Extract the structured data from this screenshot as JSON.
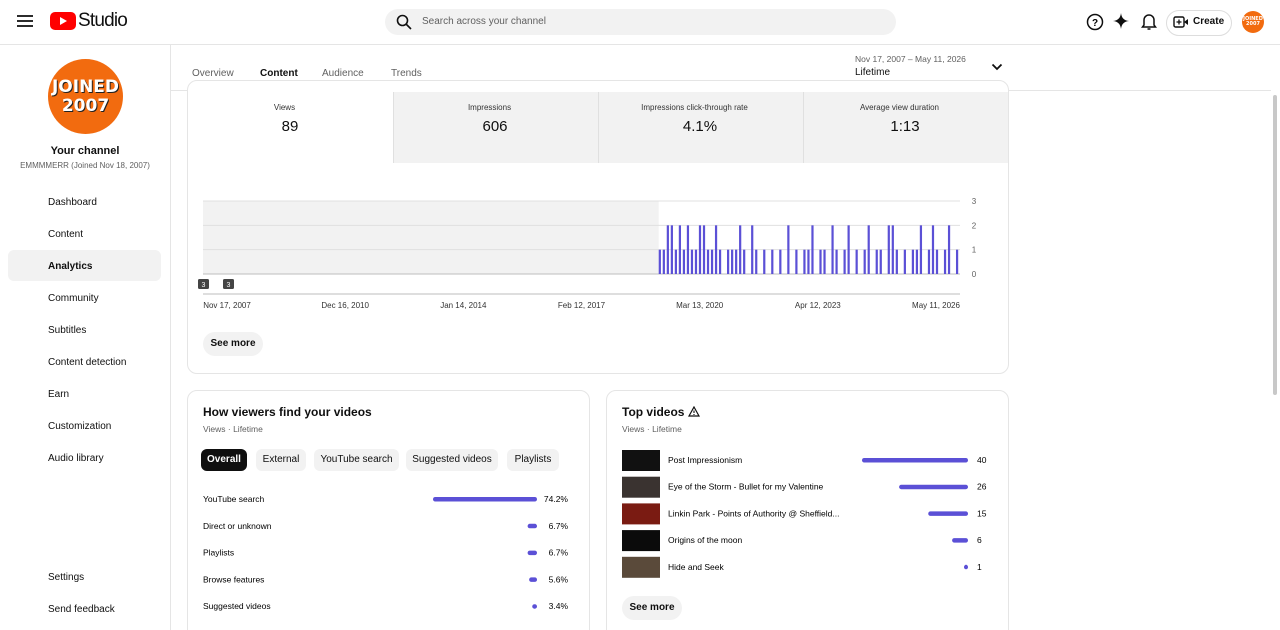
{
  "header": {
    "logo": "Studio",
    "search_placeholder": "Search across your channel",
    "create": "Create",
    "avatar": "JOINED 2007"
  },
  "sidebar": {
    "avatar": "JOINED 2007",
    "channel_title": "Your channel",
    "channel_subtitle": "EMMMMERR (Joined Nov 18, 2007)",
    "nav": [
      "Dashboard",
      "Content",
      "Analytics",
      "Community",
      "Subtitles",
      "Content detection",
      "Earn",
      "Customization",
      "Audio library"
    ],
    "active_nav": 2,
    "footer": [
      "Settings",
      "Send feedback"
    ]
  },
  "tabs": {
    "items": [
      "Overview",
      "Content",
      "Audience",
      "Trends"
    ],
    "active": 1
  },
  "date_range": {
    "range": "Nov 17, 2007 – May 11, 2026",
    "period": "Lifetime"
  },
  "metrics": [
    {
      "label": "Views",
      "value": "89"
    },
    {
      "label": "Impressions",
      "value": "606"
    },
    {
      "label": "Impressions click-through rate",
      "value": "4.1%"
    },
    {
      "label": "Average view duration",
      "value": "1:13"
    }
  ],
  "views_chart": {
    "ylim": [
      0,
      3
    ],
    "yticks": [
      0,
      1,
      2,
      3
    ],
    "color": "#5b50d6",
    "x_labels": [
      "Nov 17, 2007",
      "Dec 16, 2010",
      "Jan 14, 2014",
      "Feb 12, 2017",
      "Mar 13, 2020",
      "Apr 12, 2023",
      "May 11, 2026"
    ],
    "markers": [
      "3",
      "3"
    ],
    "values": [
      1,
      1,
      2,
      2,
      1,
      2,
      1,
      2,
      1,
      1,
      2,
      2,
      1,
      1,
      2,
      1,
      0,
      1,
      1,
      1,
      2,
      1,
      0,
      2,
      1,
      0,
      1,
      0,
      1,
      0,
      1,
      0,
      2,
      0,
      1,
      0,
      1,
      1,
      2,
      0,
      1,
      1,
      0,
      2,
      1,
      0,
      1,
      2,
      0,
      1,
      0,
      1,
      2,
      0,
      1,
      1,
      0,
      2,
      2,
      1,
      0,
      1,
      0,
      1,
      1,
      2,
      0,
      1,
      2,
      1,
      0,
      1,
      2,
      0,
      1
    ],
    "see_more": "See more"
  },
  "traffic_sources": {
    "title": "How viewers find your videos",
    "subtitle": "Views · Lifetime",
    "filters": [
      "Overall",
      "External",
      "YouTube search",
      "Suggested videos",
      "Playlists"
    ],
    "active_filter": 0,
    "rows": [
      {
        "name": "YouTube search",
        "value": 74.2,
        "label": "74.2%"
      },
      {
        "name": "Direct or unknown",
        "value": 6.7,
        "label": "6.7%"
      },
      {
        "name": "Playlists",
        "value": 6.7,
        "label": "6.7%"
      },
      {
        "name": "Browse features",
        "value": 5.6,
        "label": "5.6%"
      },
      {
        "name": "Suggested videos",
        "value": 3.4,
        "label": "3.4%"
      }
    ]
  },
  "top_videos": {
    "title": "Top videos",
    "subtitle": "Views · Lifetime",
    "rows": [
      {
        "title": "Post Impressionism",
        "views": 40
      },
      {
        "title": "Eye of the Storm - Bullet for my Valentine",
        "views": 26
      },
      {
        "title": "Linkin Park - Points of Authority @ Sheffield...",
        "views": 15
      },
      {
        "title": "Origins of the moon",
        "views": 6
      },
      {
        "title": "Hide and Seek",
        "views": 1
      }
    ],
    "see_more": "See more"
  }
}
